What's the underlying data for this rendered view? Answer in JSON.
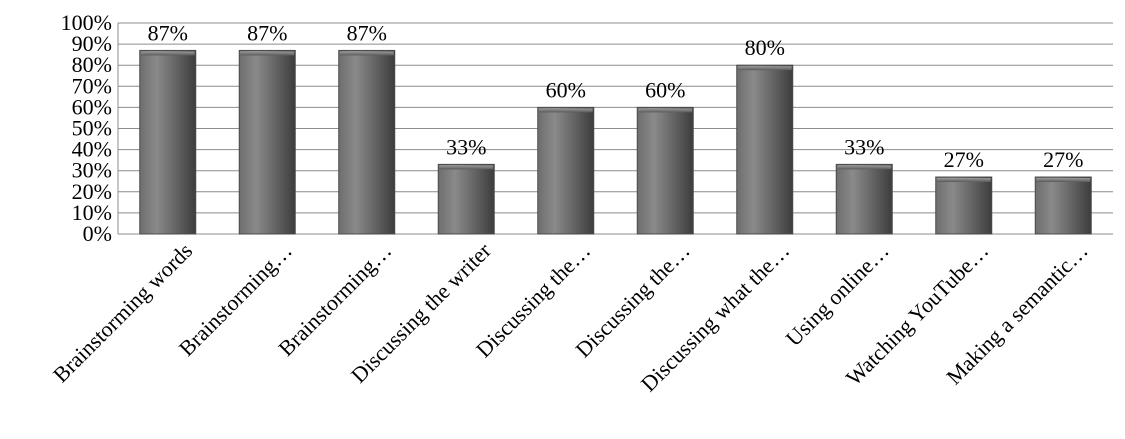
{
  "chart_data": {
    "type": "bar",
    "title": "",
    "xlabel": "",
    "ylabel": "",
    "categories": [
      "Brainstorming words",
      "Brainstorming…",
      "Brainstorming…",
      "Discussing the writer",
      "Discussing the…",
      "Discussing the…",
      "Discussing what the…",
      "Using online…",
      "Watching YouTube…",
      "Making a semantic…"
    ],
    "values": [
      87,
      87,
      87,
      33,
      60,
      60,
      80,
      33,
      27,
      27
    ],
    "data_labels": [
      "87%",
      "87%",
      "87%",
      "33%",
      "60%",
      "60%",
      "80%",
      "33%",
      "27%",
      "27%"
    ],
    "ylim": [
      0,
      100
    ],
    "yticks": [
      0,
      10,
      20,
      30,
      40,
      50,
      60,
      70,
      80,
      90,
      100
    ],
    "ytick_labels": [
      "0%",
      "10%",
      "20%",
      "30%",
      "40%",
      "50%",
      "60%",
      "70%",
      "80%",
      "90%",
      "100%"
    ],
    "grid": true,
    "legend": "none",
    "colors": {
      "bar_dark": "#3d3d3d",
      "bar_mid": "#6e6e6e",
      "bar_light": "#8a8a8a",
      "gridline": "#8c8c8c"
    }
  }
}
